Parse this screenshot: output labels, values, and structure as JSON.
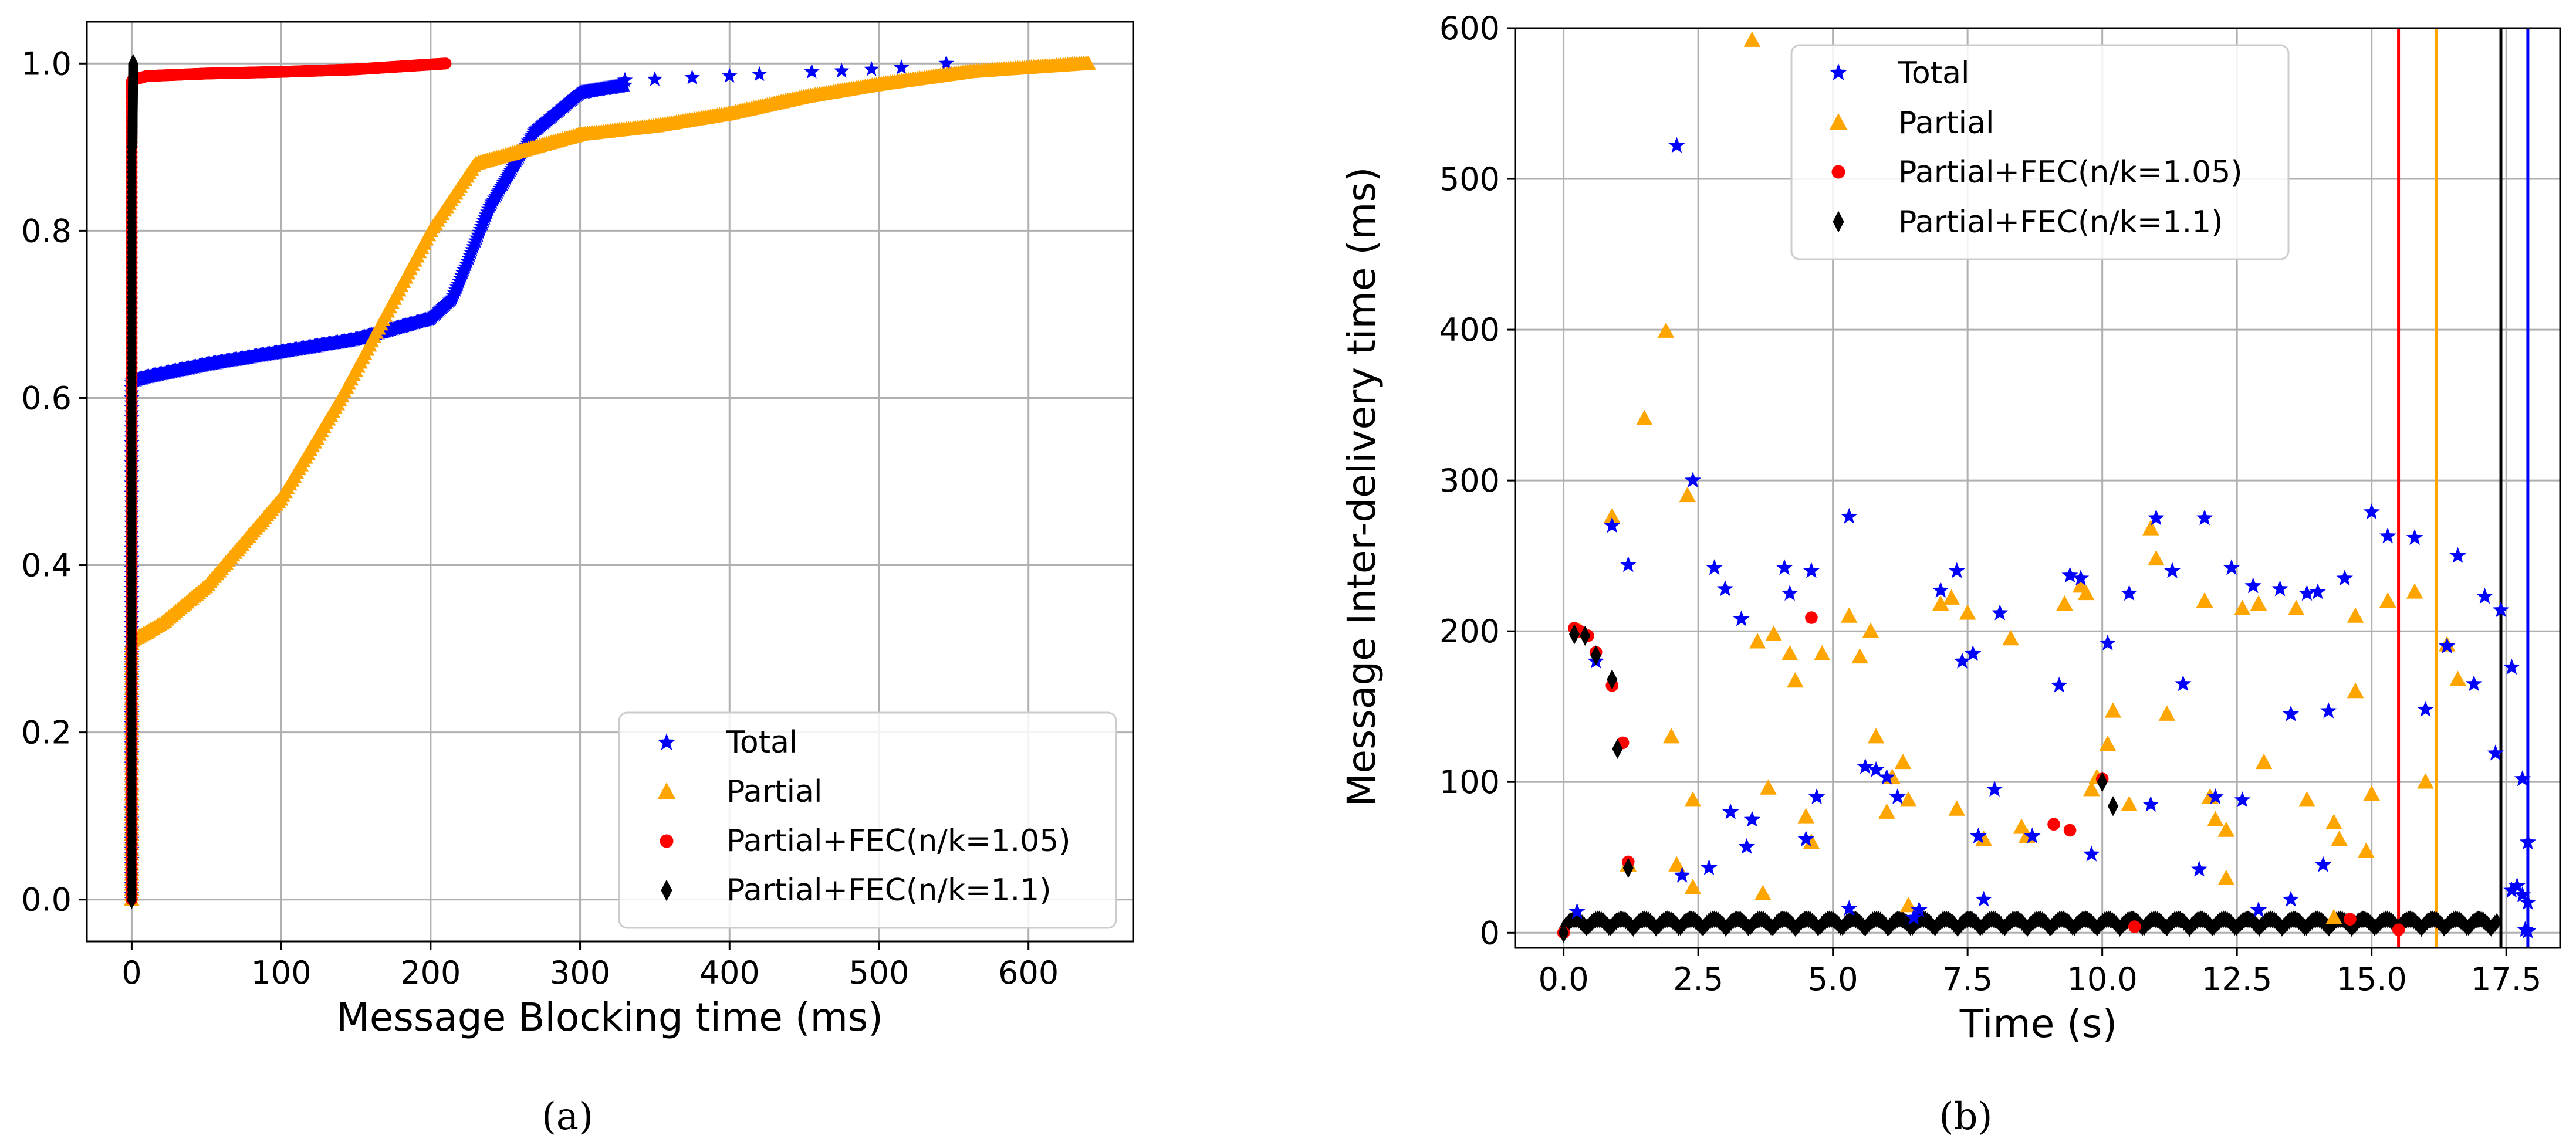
{
  "colors": {
    "total": "#0000ff",
    "partial": "#ffa500",
    "fec105": "#ff0000",
    "fec11": "#000000",
    "grid": "#b0b0b0"
  },
  "legend_labels": [
    "Total",
    "Partial",
    "Partial+FEC(n/k=1.05)",
    "Partial+FEC(n/k=1.1)"
  ],
  "captions": [
    "(a)",
    "(b)"
  ],
  "chart_data": [
    {
      "type": "scatter",
      "panel": "(a)",
      "title": "",
      "xlabel": "Message Blocking time (ms)",
      "ylabel": "",
      "xlim": [
        -30,
        670
      ],
      "ylim": [
        -0.05,
        1.05
      ],
      "xticks": [
        0,
        100,
        200,
        300,
        400,
        500,
        600
      ],
      "xtick_labels": [
        "0",
        "100",
        "200",
        "300",
        "400",
        "500",
        "600"
      ],
      "yticks": [
        0.0,
        0.2,
        0.4,
        0.6,
        0.8,
        1.0
      ],
      "ytick_labels": [
        "0.0",
        "0.2",
        "0.4",
        "0.6",
        "0.8",
        "1.0"
      ],
      "grid": true,
      "legend_position": "lower-right",
      "series": [
        {
          "name": "Total",
          "marker": "star",
          "curve": [
            [
              0,
              0.0
            ],
            [
              0.5,
              0.62
            ],
            [
              10,
              0.625
            ],
            [
              50,
              0.64
            ],
            [
              100,
              0.655
            ],
            [
              150,
              0.67
            ],
            [
              200,
              0.695
            ],
            [
              215,
              0.72
            ],
            [
              240,
              0.83
            ],
            [
              270,
              0.92
            ],
            [
              300,
              0.965
            ],
            [
              350,
              0.98
            ],
            [
              400,
              0.985
            ],
            [
              450,
              0.99
            ],
            [
              500,
              0.995
            ],
            [
              550,
              1.0
            ]
          ],
          "sparse": [
            [
              330,
              0.98
            ],
            [
              350,
              0.981
            ],
            [
              375,
              0.983
            ],
            [
              400,
              0.985
            ],
            [
              420,
              0.987
            ],
            [
              455,
              0.99
            ],
            [
              475,
              0.991
            ],
            [
              495,
              0.993
            ],
            [
              515,
              0.995
            ],
            [
              545,
              1.0
            ]
          ]
        },
        {
          "name": "Partial",
          "marker": "triangle",
          "curve": [
            [
              0,
              0.0
            ],
            [
              0.5,
              0.31
            ],
            [
              20,
              0.33
            ],
            [
              50,
              0.375
            ],
            [
              100,
              0.48
            ],
            [
              140,
              0.6
            ],
            [
              170,
              0.7
            ],
            [
              200,
              0.8
            ],
            [
              230,
              0.88
            ],
            [
              270,
              0.9
            ],
            [
              300,
              0.915
            ],
            [
              350,
              0.925
            ],
            [
              400,
              0.94
            ],
            [
              450,
              0.96
            ],
            [
              500,
              0.975
            ],
            [
              560,
              0.99
            ],
            [
              640,
              1.0
            ]
          ],
          "sparse": []
        },
        {
          "name": "Partial+FEC(n/k=1.05)",
          "marker": "circle",
          "curve": [
            [
              0,
              0.0
            ],
            [
              0.5,
              0.98
            ],
            [
              10,
              0.985
            ],
            [
              50,
              0.988
            ],
            [
              100,
              0.99
            ],
            [
              150,
              0.993
            ],
            [
              210,
              1.0
            ]
          ],
          "sparse": []
        },
        {
          "name": "Partial+FEC(n/k=1.1)",
          "marker": "diamond",
          "curve": [
            [
              0,
              0.0
            ],
            [
              0.5,
              0.9
            ],
            [
              1,
              1.0
            ]
          ],
          "sparse": []
        }
      ]
    },
    {
      "type": "scatter",
      "panel": "(b)",
      "title": "",
      "xlabel": "Time (s)",
      "ylabel": "Message Inter-delivery time (ms)",
      "xlim": [
        -0.9,
        18.5
      ],
      "ylim": [
        -10,
        600
      ],
      "xticks": [
        0,
        2.5,
        5,
        7.5,
        10,
        12.5,
        15,
        17.5
      ],
      "xtick_labels": [
        "0.0",
        "2.5",
        "5.0",
        "7.5",
        "10.0",
        "12.5",
        "15.0",
        "17.5"
      ],
      "yticks": [
        0,
        100,
        200,
        300,
        400,
        500,
        600
      ],
      "ytick_labels": [
        "0",
        "100",
        "200",
        "300",
        "400",
        "500",
        "600"
      ],
      "grid": true,
      "legend_position": "top-center",
      "vertical_lines": [
        {
          "series": "Partial+FEC(n/k=1.05)",
          "x": 15.5
        },
        {
          "series": "Partial",
          "x": 16.2
        },
        {
          "series": "Partial+FEC(n/k=1.1)",
          "x": 17.4
        },
        {
          "series": "Total",
          "x": 17.9
        }
      ],
      "series": [
        {
          "name": "Total",
          "marker": "star",
          "points": [
            [
              0.25,
              14
            ],
            [
              0.6,
              180
            ],
            [
              0.9,
              270
            ],
            [
              1.2,
              244
            ],
            [
              2.1,
              522
            ],
            [
              2.4,
              300
            ],
            [
              2.2,
              38
            ],
            [
              2.7,
              43
            ],
            [
              2.8,
              242
            ],
            [
              3.0,
              228
            ],
            [
              3.3,
              208
            ],
            [
              3.4,
              57
            ],
            [
              3.1,
              80
            ],
            [
              3.5,
              75
            ],
            [
              4.1,
              242
            ],
            [
              4.2,
              225
            ],
            [
              4.6,
              240
            ],
            [
              4.7,
              90
            ],
            [
              4.5,
              62
            ],
            [
              5.3,
              276
            ],
            [
              5.3,
              16
            ],
            [
              5.6,
              110
            ],
            [
              5.8,
              108
            ],
            [
              6.0,
              103
            ],
            [
              6.2,
              90
            ],
            [
              6.5,
              10
            ],
            [
              6.6,
              15
            ],
            [
              7.0,
              227
            ],
            [
              7.3,
              240
            ],
            [
              7.4,
              180
            ],
            [
              7.6,
              185
            ],
            [
              7.7,
              64
            ],
            [
              7.8,
              22
            ],
            [
              8.0,
              95
            ],
            [
              8.1,
              212
            ],
            [
              8.7,
              64
            ],
            [
              9.2,
              164
            ],
            [
              9.4,
              237
            ],
            [
              9.6,
              235
            ],
            [
              9.8,
              52
            ],
            [
              10.1,
              192
            ],
            [
              10.5,
              225
            ],
            [
              10.9,
              85
            ],
            [
              11.0,
              275
            ],
            [
              11.3,
              240
            ],
            [
              11.5,
              165
            ],
            [
              11.9,
              275
            ],
            [
              11.8,
              42
            ],
            [
              12.1,
              90
            ],
            [
              12.4,
              242
            ],
            [
              12.6,
              88
            ],
            [
              12.8,
              230
            ],
            [
              12.9,
              15
            ],
            [
              13.3,
              228
            ],
            [
              13.5,
              145
            ],
            [
              13.5,
              22
            ],
            [
              13.8,
              225
            ],
            [
              14.0,
              226
            ],
            [
              14.1,
              45
            ],
            [
              14.5,
              235
            ],
            [
              14.2,
              147
            ],
            [
              15.0,
              279
            ],
            [
              15.3,
              263
            ],
            [
              15.8,
              262
            ],
            [
              16.0,
              148
            ],
            [
              16.4,
              190
            ],
            [
              16.6,
              250
            ],
            [
              16.9,
              165
            ],
            [
              17.1,
              223
            ],
            [
              17.3,
              119
            ],
            [
              17.4,
              214
            ],
            [
              17.6,
              176
            ],
            [
              17.8,
              102
            ],
            [
              17.9,
              60
            ],
            [
              17.6,
              28
            ],
            [
              17.7,
              31
            ],
            [
              17.8,
              25
            ],
            [
              17.9,
              20
            ],
            [
              17.85,
              2
            ],
            [
              17.9,
              1
            ]
          ]
        },
        {
          "name": "Partial",
          "marker": "triangle",
          "points": [
            [
              0.3,
              200
            ],
            [
              0.9,
              276
            ],
            [
              1.2,
              45
            ],
            [
              1.5,
              341
            ],
            [
              1.9,
              399
            ],
            [
              2.0,
              130
            ],
            [
              2.3,
              290
            ],
            [
              2.1,
              45
            ],
            [
              2.4,
              88
            ],
            [
              2.4,
              30
            ],
            [
              3.5,
              592
            ],
            [
              3.6,
              193
            ],
            [
              3.7,
              26
            ],
            [
              3.8,
              96
            ],
            [
              3.9,
              198
            ],
            [
              4.2,
              185
            ],
            [
              4.3,
              167
            ],
            [
              4.5,
              77
            ],
            [
              4.6,
              60
            ],
            [
              4.8,
              185
            ],
            [
              5.3,
              210
            ],
            [
              5.5,
              183
            ],
            [
              5.7,
              200
            ],
            [
              5.8,
              130
            ],
            [
              6.0,
              80
            ],
            [
              6.1,
              103
            ],
            [
              6.3,
              113
            ],
            [
              6.4,
              88
            ],
            [
              6.4,
              18
            ],
            [
              7.0,
              218
            ],
            [
              7.2,
              222
            ],
            [
              7.3,
              82
            ],
            [
              7.5,
              212
            ],
            [
              7.8,
              62
            ],
            [
              8.3,
              195
            ],
            [
              8.5,
              70
            ],
            [
              8.6,
              64
            ],
            [
              9.3,
              218
            ],
            [
              9.6,
              230
            ],
            [
              9.7,
              225
            ],
            [
              9.8,
              95
            ],
            [
              9.9,
              103
            ],
            [
              10.1,
              125
            ],
            [
              10.2,
              147
            ],
            [
              10.5,
              85
            ],
            [
              10.9,
              268
            ],
            [
              11.0,
              248
            ],
            [
              11.2,
              145
            ],
            [
              11.9,
              220
            ],
            [
              12.0,
              90
            ],
            [
              12.1,
              75
            ],
            [
              12.3,
              36
            ],
            [
              12.3,
              68
            ],
            [
              12.6,
              215
            ],
            [
              12.9,
              218
            ],
            [
              13.0,
              113
            ],
            [
              13.6,
              215
            ],
            [
              13.8,
              88
            ],
            [
              14.3,
              73
            ],
            [
              14.4,
              62
            ],
            [
              14.3,
              10
            ],
            [
              14.7,
              210
            ],
            [
              14.7,
              160
            ],
            [
              14.9,
              54
            ],
            [
              15.0,
              92
            ],
            [
              15.3,
              220
            ],
            [
              15.8,
              226
            ],
            [
              16.0,
              100
            ],
            [
              16.4,
              191
            ],
            [
              16.6,
              168
            ]
          ]
        },
        {
          "name": "Partial+FEC(n/k=1.05)",
          "marker": "circle",
          "points": [
            [
              0.0,
              0
            ],
            [
              0.2,
              202
            ],
            [
              0.3,
              200
            ],
            [
              0.45,
              197
            ],
            [
              0.6,
              186
            ],
            [
              0.9,
              164
            ],
            [
              1.1,
              126
            ],
            [
              1.2,
              47
            ],
            [
              4.6,
              209
            ],
            [
              9.1,
              72
            ],
            [
              9.4,
              68
            ],
            [
              10.0,
              102
            ],
            [
              10.6,
              4
            ],
            [
              14.6,
              9
            ],
            [
              15.5,
              2
            ]
          ]
        },
        {
          "name": "Partial+FEC(n/k=1.1)",
          "marker": "diamond",
          "points": [
            [
              0.0,
              0
            ],
            [
              0.2,
              198
            ],
            [
              0.4,
              197
            ],
            [
              0.6,
              184
            ],
            [
              0.9,
              168
            ],
            [
              1.0,
              122
            ],
            [
              1.2,
              43
            ],
            [
              10.0,
              100
            ],
            [
              10.2,
              84
            ]
          ]
        }
      ]
    }
  ]
}
